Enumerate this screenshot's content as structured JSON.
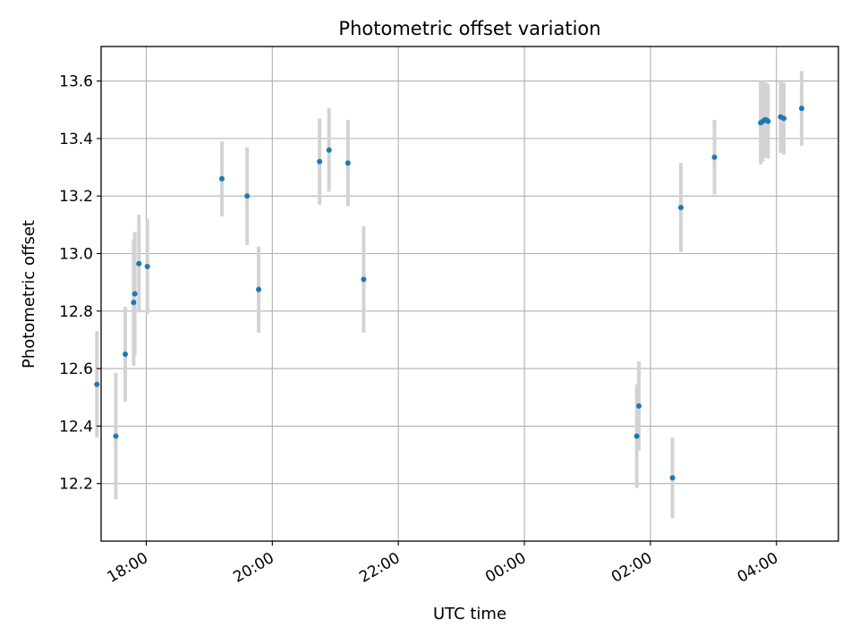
{
  "chart_data": {
    "type": "scatter",
    "title": "Photometric offset variation",
    "xlabel": "UTC time",
    "ylabel": "Photometric offset",
    "grid": true,
    "legend": "none",
    "xlim": [
      "17:17",
      "04:59"
    ],
    "ylim": [
      12.0,
      13.72
    ],
    "x_ticks": [
      "18:00",
      "20:00",
      "22:00",
      "00:00",
      "02:00",
      "04:00"
    ],
    "y_ticks": [
      12.2,
      12.4,
      12.6,
      12.8,
      13.0,
      13.2,
      13.4,
      13.6
    ],
    "series": [
      {
        "point_color": "#1f77b4",
        "errorbar_color": "#d3d3d3",
        "points": [
          {
            "x": "17:13",
            "y": 12.545,
            "err": 0.185
          },
          {
            "x": "17:31",
            "y": 12.365,
            "err": 0.22
          },
          {
            "x": "17:40",
            "y": 12.65,
            "err": 0.165
          },
          {
            "x": "17:48",
            "y": 12.83,
            "err": 0.22
          },
          {
            "x": "17:49",
            "y": 12.86,
            "err": 0.215
          },
          {
            "x": "17:53",
            "y": 12.965,
            "err": 0.17
          },
          {
            "x": "18:01",
            "y": 12.955,
            "err": 0.165
          },
          {
            "x": "19:12",
            "y": 13.26,
            "err": 0.13
          },
          {
            "x": "19:36",
            "y": 13.2,
            "err": 0.17
          },
          {
            "x": "19:47",
            "y": 12.875,
            "err": 0.15
          },
          {
            "x": "20:45",
            "y": 13.32,
            "err": 0.15
          },
          {
            "x": "20:54",
            "y": 13.36,
            "err": 0.145
          },
          {
            "x": "21:12",
            "y": 13.315,
            "err": 0.15
          },
          {
            "x": "21:27",
            "y": 12.91,
            "err": 0.185
          },
          {
            "x": "01:47",
            "y": 12.365,
            "err": 0.18
          },
          {
            "x": "01:49",
            "y": 12.47,
            "err": 0.155
          },
          {
            "x": "02:21",
            "y": 12.22,
            "err": 0.14
          },
          {
            "x": "02:29",
            "y": 13.16,
            "err": 0.155
          },
          {
            "x": "03:01",
            "y": 13.335,
            "err": 0.13
          },
          {
            "x": "03:45",
            "y": 13.455,
            "err": 0.145
          },
          {
            "x": "03:47",
            "y": 13.46,
            "err": 0.14
          },
          {
            "x": "03:49",
            "y": 13.465,
            "err": 0.13
          },
          {
            "x": "03:50",
            "y": 13.465,
            "err": 0.13
          },
          {
            "x": "03:52",
            "y": 13.46,
            "err": 0.13
          },
          {
            "x": "04:04",
            "y": 13.475,
            "err": 0.125
          },
          {
            "x": "04:07",
            "y": 13.47,
            "err": 0.125
          },
          {
            "x": "04:24",
            "y": 13.505,
            "err": 0.13
          }
        ]
      }
    ]
  }
}
